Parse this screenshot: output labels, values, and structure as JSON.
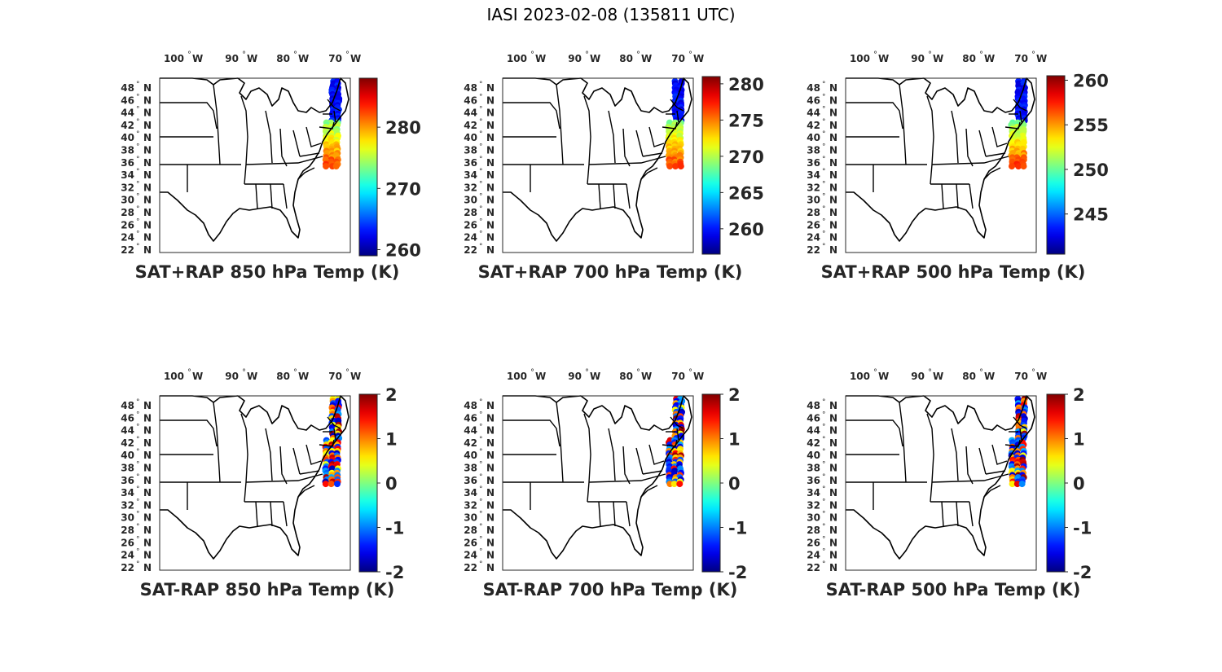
{
  "figure_title": "IASI 2023-02-08 (135811 UTC)",
  "lon_labels": [
    "100",
    "90",
    "80",
    "70"
  ],
  "lat_labels": [
    "48",
    "46",
    "44",
    "42",
    "40",
    "38",
    "36",
    "34",
    "32",
    "30",
    "28",
    "26",
    "24",
    "22"
  ],
  "degree_symbol": "°",
  "west_label": "W",
  "north_label": "N",
  "map_extent": {
    "lon": [
      -106,
      -67
    ],
    "lat": [
      22,
      50
    ]
  },
  "colormap": "jet",
  "line_color": "#000000",
  "panels": [
    {
      "title": "SAT+RAP 850 hPa Temp (K)",
      "cbar_range": [
        259,
        288
      ],
      "cbar_ticks": [
        "280",
        "270",
        "260"
      ],
      "cbar_tick_values": [
        280,
        270,
        260
      ]
    },
    {
      "title": "SAT+RAP 700 hPa Temp (K)",
      "cbar_range": [
        256.5,
        281
      ],
      "cbar_ticks": [
        "280",
        "275",
        "270",
        "265",
        "260"
      ],
      "cbar_tick_values": [
        280,
        275,
        270,
        265,
        260
      ]
    },
    {
      "title": "SAT+RAP 500 hPa Temp (K)",
      "cbar_range": [
        240.5,
        260.5
      ],
      "cbar_ticks": [
        "260",
        "255",
        "250",
        "245"
      ],
      "cbar_tick_values": [
        260,
        255,
        250,
        245
      ]
    },
    {
      "title": "SAT-RAP 850 hPa Temp (K)",
      "cbar_range": [
        -2,
        2
      ],
      "cbar_ticks": [
        "2",
        "1",
        "0",
        "-1",
        "-2"
      ],
      "cbar_tick_values": [
        2,
        1,
        0,
        -1,
        -2
      ]
    },
    {
      "title": "SAT-RAP 700 hPa Temp (K)",
      "cbar_range": [
        -2,
        2
      ],
      "cbar_ticks": [
        "2",
        "1",
        "0",
        "-1",
        "-2"
      ],
      "cbar_tick_values": [
        2,
        1,
        0,
        -1,
        -2
      ]
    },
    {
      "title": "SAT-RAP 500 hPa Temp (K)",
      "cbar_range": [
        -2,
        2
      ],
      "cbar_ticks": [
        "2",
        "1",
        "0",
        "-1",
        "-2"
      ],
      "cbar_tick_values": [
        2,
        1,
        0,
        -1,
        -2
      ]
    }
  ]
}
